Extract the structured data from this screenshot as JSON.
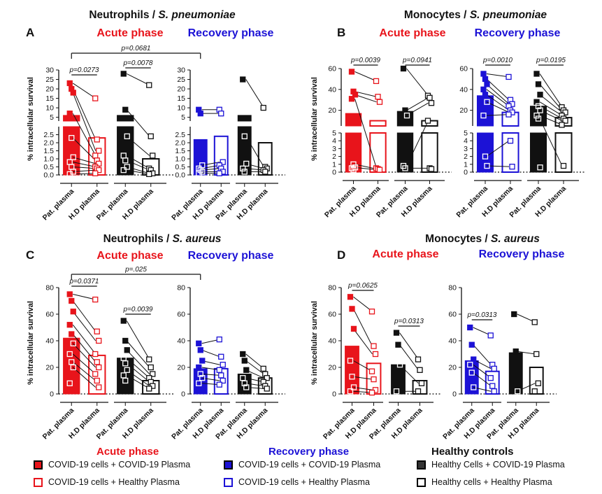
{
  "colors": {
    "acute": "#e8141b",
    "recovery": "#1c12d6",
    "healthy": "#111111",
    "white": "#ffffff"
  },
  "figure": {
    "ylabel": "% intracellular survival",
    "xtick_labels": [
      "Pat. plasma",
      "H.D plasma"
    ],
    "xtick_labels_D_acute": [
      "Pat. plasma",
      "H.D plasma"
    ]
  },
  "panels": {
    "A": {
      "letter": "A",
      "title_main": "Neutrophils / ",
      "title_italic": "S. pneumoniae",
      "acute_label": "Acute phase",
      "recovery_label": "Recovery phase",
      "long_bracket_p": "p=0.0681",
      "p_acute_covid": "p=0.0273",
      "p_acute_healthy": "p=0.0078"
    },
    "B": {
      "letter": "B",
      "title_main": "Monocytes / ",
      "title_italic": "S. pneumoniae",
      "acute_label": "Acute phase",
      "recovery_label": "Recovery phase",
      "p_acute_covid": "p=0.0039",
      "p_acute_healthy": "p=0.0941",
      "p_recovery_covid": "p=0.0010",
      "p_recovery_healthy": "p=0.0195"
    },
    "C": {
      "letter": "C",
      "title_main": "Neutrophils / ",
      "title_italic": "S. aureus",
      "acute_label": "Acute phase",
      "recovery_label": "Recovery phase",
      "long_bracket_p": "p=.025",
      "p_acute_covid": "p=0.0371",
      "p_acute_healthy": "p=0.0039"
    },
    "D": {
      "letter": "D",
      "title_main": "Monocytes / ",
      "title_italic": "S. aureus",
      "acute_label": "Acute phase",
      "recovery_label": "Recovery phase",
      "p_acute_covid": "p=0.0625",
      "p_acute_healthy": "p=0.0313",
      "p_recovery_covid": "p=0.0313"
    }
  },
  "legend": {
    "acute_head": "Acute phase",
    "recovery_head": "Recovery phase",
    "healthy_head": "Healthy controls",
    "acute_items": [
      "COVID-19 cells + COVID-19 Plasma",
      "COVID-19 cells + Healthy Plasma"
    ],
    "recovery_items": [
      "COVID-19 cells + COVID-19 Plasma",
      "COVID-19 cells + Healthy Plasma"
    ],
    "healthy_items": [
      "Healthy Cells + COVID-19 Plasma",
      "Healthy cells + Healthy Plasma"
    ]
  },
  "chart_data": [
    {
      "id": "A-acute",
      "type": "bar",
      "panel": "A",
      "group": "Acute phase",
      "ylim_broken": {
        "lower": [
          0,
          3
        ],
        "upper": [
          3,
          30
        ]
      },
      "ticks_lower": [
        0.0,
        0.5,
        1.0,
        1.5,
        2.0,
        2.5
      ],
      "ticks_upper": [
        5,
        10,
        15,
        20,
        25,
        30
      ],
      "categories": [
        "Pat. plasma",
        "H.D plasma",
        "Pat. plasma",
        "H.D plasma"
      ],
      "bars": [
        {
          "cells": "COVID-19",
          "plasma": "COVID-19",
          "mean": 6,
          "points": [
            23,
            20,
            18,
            7,
            2.3,
            1.1,
            0.8,
            0.5,
            0.2,
            0.05
          ]
        },
        {
          "cells": "COVID-19",
          "plasma": "Healthy",
          "mean": 2.3,
          "points": [
            15,
            2.2,
            1.5,
            1.2,
            0.9,
            0.7,
            0.5,
            0.4,
            0.3,
            0.1
          ]
        },
        {
          "cells": "Healthy",
          "plasma": "COVID-19",
          "mean": 6,
          "points": [
            28,
            9,
            2.4,
            1.2,
            0.9,
            0.5,
            0.3
          ]
        },
        {
          "cells": "Healthy",
          "plasma": "Healthy",
          "mean": 1,
          "points": [
            22,
            2.4,
            1.2,
            0.4,
            0.3,
            0.1,
            0.05
          ]
        }
      ]
    },
    {
      "id": "A-recovery",
      "type": "bar",
      "panel": "A",
      "group": "Recovery phase",
      "ylim_broken": {
        "lower": [
          0,
          3
        ],
        "upper": [
          3,
          30
        ]
      },
      "ticks_lower": [
        0.0,
        0.5,
        1.0,
        1.5,
        2.0,
        2.5
      ],
      "ticks_upper": [
        5,
        10,
        15,
        20,
        25,
        30
      ],
      "categories": [
        "Pat. plasma",
        "H.D plasma",
        "Pat. plasma",
        "H.D plasma"
      ],
      "bars": [
        {
          "cells": "COVID-19",
          "plasma": "COVID-19",
          "mean": 2.2,
          "points": [
            9,
            7,
            0.6,
            0.4,
            0.3,
            0.2,
            0.1
          ]
        },
        {
          "cells": "COVID-19",
          "plasma": "Healthy",
          "mean": 2.4,
          "points": [
            9,
            7,
            0.8,
            0.6,
            0.4,
            0.2,
            0.1
          ]
        },
        {
          "cells": "Healthy",
          "plasma": "COVID-19",
          "mean": 6,
          "points": [
            25,
            2.4,
            0.7,
            0.4,
            0.2
          ]
        },
        {
          "cells": "Healthy",
          "plasma": "Healthy",
          "mean": 2,
          "points": [
            10,
            0.5,
            0.4,
            0.3,
            0.2
          ]
        }
      ]
    },
    {
      "id": "B-acute",
      "type": "bar",
      "panel": "B",
      "group": "Acute phase",
      "ylim_broken": {
        "lower": [
          0,
          5
        ],
        "upper": [
          5,
          60
        ]
      },
      "ticks_lower": [
        0,
        1,
        2,
        3,
        4,
        5
      ],
      "ticks_upper": [
        20,
        40,
        60
      ],
      "categories": [
        "Pat. plasma",
        "H.D plasma",
        "Pat. plasma",
        "H.D plasma"
      ],
      "bars": [
        {
          "cells": "COVID-19",
          "plasma": "COVID-19",
          "mean": 17,
          "points": [
            57,
            38,
            35,
            31,
            1.0,
            0.6,
            0.5,
            0.3
          ]
        },
        {
          "cells": "COVID-19",
          "plasma": "Healthy",
          "mean": 10,
          "points": [
            48,
            33,
            28,
            0.5,
            0.4,
            0.3
          ]
        },
        {
          "cells": "Healthy",
          "plasma": "COVID-19",
          "mean": 19,
          "points": [
            60,
            20,
            15,
            0.8,
            0.5
          ]
        },
        {
          "cells": "Healthy",
          "plasma": "Healthy",
          "mean": 10,
          "points": [
            34,
            32,
            27,
            10,
            0.5,
            0.4
          ]
        }
      ]
    },
    {
      "id": "B-recovery",
      "type": "bar",
      "panel": "B",
      "group": "Recovery phase",
      "ylim_broken": {
        "lower": [
          0,
          5
        ],
        "upper": [
          5,
          60
        ]
      },
      "ticks_lower": [
        0,
        1,
        2,
        3,
        4,
        5
      ],
      "ticks_upper": [
        20,
        40,
        60
      ],
      "categories": [
        "Pat. plasma",
        "H.D plasma",
        "Pat. plasma",
        "H.D plasma"
      ],
      "bars": [
        {
          "cells": "COVID-19",
          "plasma": "COVID-19",
          "mean": 34,
          "points": [
            55,
            50,
            45,
            40,
            35,
            28,
            15,
            2.0,
            0.8
          ]
        },
        {
          "cells": "COVID-19",
          "plasma": "Healthy",
          "mean": 18,
          "points": [
            52,
            30,
            26,
            24,
            20,
            18,
            16,
            4.0,
            0.7
          ]
        },
        {
          "cells": "Healthy",
          "plasma": "COVID-19",
          "mean": 24,
          "points": [
            55,
            45,
            35,
            28,
            24,
            20,
            15,
            12,
            0.6
          ]
        },
        {
          "cells": "Healthy",
          "plasma": "Healthy",
          "mean": 13,
          "points": [
            23,
            20,
            18,
            15,
            12,
            10,
            6,
            0.8
          ]
        }
      ]
    },
    {
      "id": "C-acute",
      "type": "bar",
      "panel": "C",
      "group": "Acute phase",
      "ylim": [
        0,
        80
      ],
      "ticks": [
        0,
        20,
        40,
        60,
        80
      ],
      "categories": [
        "Pat. plasma",
        "H.D plasma",
        "Pat. plasma",
        "H.D plasma"
      ],
      "bars": [
        {
          "cells": "COVID-19",
          "plasma": "COVID-19",
          "mean": 42,
          "points": [
            75,
            70,
            62,
            52,
            45,
            38,
            30,
            24,
            20,
            8
          ]
        },
        {
          "cells": "COVID-19",
          "plasma": "Healthy",
          "mean": 29,
          "points": [
            71,
            47,
            40,
            30,
            24,
            20,
            15,
            10,
            5
          ]
        },
        {
          "cells": "Healthy",
          "plasma": "COVID-19",
          "mean": 27,
          "points": [
            55,
            40,
            33,
            27,
            23,
            18,
            14,
            10
          ]
        },
        {
          "cells": "Healthy",
          "plasma": "Healthy",
          "mean": 10,
          "points": [
            26,
            20,
            15,
            12,
            9,
            6,
            4
          ]
        }
      ]
    },
    {
      "id": "C-recovery",
      "type": "bar",
      "panel": "C",
      "group": "Recovery phase",
      "ylim": [
        0,
        80
      ],
      "ticks": [
        0,
        20,
        40,
        60,
        80
      ],
      "categories": [
        "Pat. plasma",
        "H.D plasma",
        "Pat. plasma",
        "H.D plasma"
      ],
      "bars": [
        {
          "cells": "COVID-19",
          "plasma": "COVID-19",
          "mean": 19,
          "points": [
            38,
            33,
            25,
            20,
            15,
            12,
            8
          ]
        },
        {
          "cells": "COVID-19",
          "plasma": "Healthy",
          "mean": 19,
          "points": [
            41,
            28,
            22,
            18,
            14,
            10,
            7
          ]
        },
        {
          "cells": "Healthy",
          "plasma": "COVID-19",
          "mean": 15,
          "points": [
            30,
            25,
            18,
            12,
            8,
            5
          ]
        },
        {
          "cells": "Healthy",
          "plasma": "Healthy",
          "mean": 12,
          "points": [
            19,
            15,
            12,
            9,
            6,
            4
          ]
        }
      ]
    },
    {
      "id": "D-acute",
      "type": "bar",
      "panel": "D",
      "group": "Acute phase",
      "ylim": [
        0,
        80
      ],
      "ticks": [
        0,
        20,
        40,
        60,
        80
      ],
      "categories": [
        "Pat. plasma",
        "H.D plasma",
        "Pat. plasma",
        "H.D plasma"
      ],
      "bars": [
        {
          "cells": "COVID-19",
          "plasma": "COVID-19",
          "mean": 36,
          "points": [
            73,
            64,
            49,
            25,
            13,
            5,
            2
          ]
        },
        {
          "cells": "COVID-19",
          "plasma": "Healthy",
          "mean": 23,
          "points": [
            62,
            36,
            30,
            17,
            11,
            3,
            1
          ]
        },
        {
          "cells": "Healthy",
          "plasma": "COVID-19",
          "mean": 22,
          "points": [
            46,
            37,
            22,
            2
          ]
        },
        {
          "cells": "Healthy",
          "plasma": "Healthy",
          "mean": 10,
          "points": [
            26,
            18,
            8,
            2
          ]
        }
      ]
    },
    {
      "id": "D-recovery",
      "type": "bar",
      "panel": "D",
      "group": "Recovery phase",
      "ylim": [
        0,
        80
      ],
      "ticks": [
        0,
        20,
        40,
        60,
        80
      ],
      "categories": [
        "Pat. plasma",
        "H.D plasma",
        "Pat. plasma",
        "H.D plasma"
      ],
      "bars": [
        {
          "cells": "COVID-19",
          "plasma": "COVID-19",
          "mean": 25,
          "points": [
            50,
            37,
            26,
            22,
            16,
            5
          ]
        },
        {
          "cells": "COVID-19",
          "plasma": "Healthy",
          "mean": 17,
          "points": [
            44,
            22,
            19,
            12,
            6,
            2
          ]
        },
        {
          "cells": "Healthy",
          "plasma": "COVID-19",
          "mean": 31,
          "points": [
            60,
            32,
            2
          ]
        },
        {
          "cells": "Healthy",
          "plasma": "Healthy",
          "mean": 20,
          "points": [
            54,
            30,
            8,
            2
          ]
        }
      ]
    }
  ]
}
